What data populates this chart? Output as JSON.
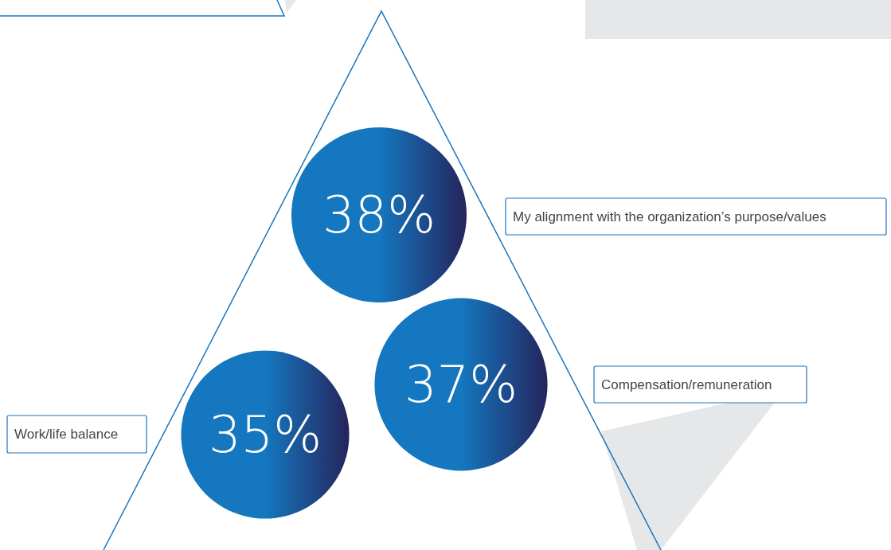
{
  "chart_data": {
    "type": "other",
    "categories": [
      "My alignment with the organization’s purpose/values",
      "Compensation/remuneration",
      "Work/life balance"
    ],
    "values": [
      38,
      37,
      35
    ],
    "value_labels": [
      "38%",
      "37%",
      "35%"
    ],
    "colors": [
      "#1477bf",
      "#1477bf",
      "#1477bf"
    ]
  }
}
